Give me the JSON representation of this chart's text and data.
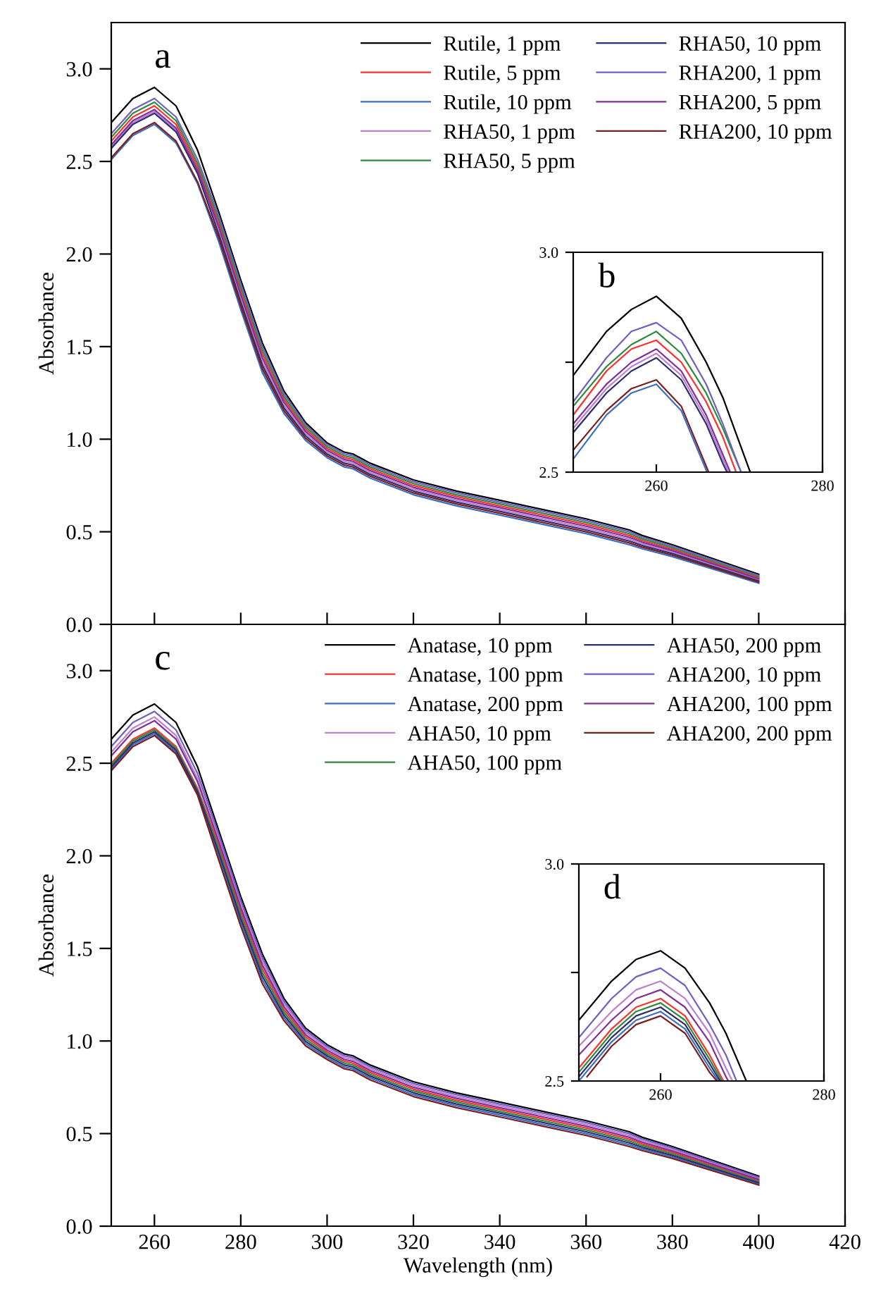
{
  "chart_data": [
    {
      "type": "line",
      "ylabel": "Absorbance",
      "annotations": [
        "a"
      ],
      "legend": "top right",
      "tick_labels": "y",
      "xlim": [
        250,
        420
      ],
      "xticks": [
        260,
        280,
        300,
        320,
        340,
        360,
        380,
        400,
        420
      ],
      "ylim": [
        0,
        3.25
      ],
      "yticks": [
        {
          "value": 0,
          "label": "0.0"
        },
        {
          "value": 0.5,
          "label": "0.5"
        },
        {
          "value": 1,
          "label": "1.0"
        },
        {
          "value": 1.5,
          "label": "1.5"
        },
        {
          "value": 2,
          "label": "2.0"
        },
        {
          "value": 2.5,
          "label": "2.5"
        },
        {
          "value": 3,
          "label": "3.0"
        }
      ],
      "x": [
        250,
        255,
        260,
        265,
        270,
        275,
        280,
        285,
        290,
        295,
        300,
        304,
        306,
        310,
        320,
        330,
        340,
        350,
        360,
        370,
        373,
        380,
        390,
        400
      ],
      "series": [
        {
          "name": "Rutile, 1 ppm",
          "color": "#000000",
          "values": [
            2.71,
            2.84,
            2.9,
            2.8,
            2.56,
            2.22,
            1.86,
            1.52,
            1.26,
            1.09,
            0.98,
            0.93,
            0.92,
            0.87,
            0.78,
            0.72,
            0.67,
            0.62,
            0.57,
            0.51,
            0.48,
            0.43,
            0.35,
            0.27
          ]
        },
        {
          "name": "Rutile, 5 ppm",
          "color": "#ff3030",
          "values": [
            2.61,
            2.74,
            2.8,
            2.7,
            2.47,
            2.16,
            1.8,
            1.46,
            1.215,
            1.054,
            0.95,
            0.9,
            0.89,
            0.84,
            0.75,
            0.69,
            0.64,
            0.59,
            0.54,
            0.48,
            0.453,
            0.406,
            0.329,
            0.252
          ]
        },
        {
          "name": "Rutile, 10 ppm",
          "color": "#3a6fc4",
          "values": [
            2.51,
            2.64,
            2.7,
            2.6,
            2.38,
            2.06,
            1.7,
            1.36,
            1.14,
            0.994,
            0.9,
            0.85,
            0.84,
            0.79,
            0.7,
            0.64,
            0.59,
            0.54,
            0.49,
            0.43,
            0.408,
            0.366,
            0.294,
            0.222
          ]
        },
        {
          "name": "RHA50, 1 ppm",
          "color": "#c080d0",
          "values": [
            2.58,
            2.71,
            2.77,
            2.67,
            2.443,
            2.12,
            1.76,
            1.42,
            1.185,
            1.03,
            0.93,
            0.88,
            0.87,
            0.82,
            0.73,
            0.67,
            0.62,
            0.57,
            0.52,
            0.46,
            0.435,
            0.39,
            0.315,
            0.24
          ]
        },
        {
          "name": "RHA50, 5 ppm",
          "color": "#2e8b3e",
          "values": [
            2.63,
            2.76,
            2.82,
            2.72,
            2.488,
            2.18,
            1.82,
            1.48,
            1.23,
            1.066,
            0.96,
            0.91,
            0.9,
            0.85,
            0.76,
            0.7,
            0.65,
            0.6,
            0.55,
            0.49,
            0.462,
            0.414,
            0.336,
            0.258
          ]
        },
        {
          "name": "RHA50, 10 ppm",
          "color": "#2e2e6e",
          "values": [
            2.57,
            2.7,
            2.76,
            2.66,
            2.434,
            2.1,
            1.74,
            1.4,
            1.17,
            1.018,
            0.92,
            0.87,
            0.86,
            0.81,
            0.72,
            0.66,
            0.61,
            0.56,
            0.51,
            0.45,
            0.426,
            0.382,
            0.308,
            0.234
          ]
        },
        {
          "name": "RHA200, 1 ppm",
          "color": "#7060c0",
          "values": [
            2.65,
            2.78,
            2.84,
            2.74,
            2.51,
            2.2,
            1.84,
            1.5,
            1.245,
            1.078,
            0.97,
            0.92,
            0.91,
            0.86,
            0.77,
            0.71,
            0.66,
            0.61,
            0.56,
            0.5,
            0.471,
            0.422,
            0.343,
            0.264
          ]
        },
        {
          "name": "RHA200, 5 ppm",
          "color": "#80309a",
          "values": [
            2.59,
            2.72,
            2.78,
            2.68,
            2.452,
            2.14,
            1.78,
            1.44,
            1.2,
            1.042,
            0.94,
            0.89,
            0.88,
            0.83,
            0.74,
            0.68,
            0.63,
            0.58,
            0.53,
            0.47,
            0.444,
            0.398,
            0.322,
            0.246
          ]
        },
        {
          "name": "RHA200, 10 ppm",
          "color": "#7a1f1f",
          "values": [
            2.52,
            2.65,
            2.71,
            2.61,
            2.389,
            2.08,
            1.72,
            1.38,
            1.155,
            1.006,
            0.91,
            0.86,
            0.85,
            0.8,
            0.71,
            0.65,
            0.6,
            0.55,
            0.5,
            0.44,
            0.417,
            0.374,
            0.301,
            0.228
          ]
        }
      ]
    },
    {
      "type": "line",
      "annotations": [
        "b"
      ],
      "xlim": [
        250,
        280
      ],
      "xticks": [
        260,
        280
      ],
      "ylim": [
        2.5,
        3.0
      ],
      "yticks": [
        {
          "value": 2.5,
          "label": "2.5"
        },
        {
          "value": 2.75,
          "label": null
        },
        {
          "value": 3.0,
          "label": "3.0"
        }
      ],
      "series": [
        {
          "color": "#000000",
          "x": [
            250,
            254,
            257,
            260,
            263,
            266,
            268,
            271.3
          ],
          "values": [
            2.72,
            2.82,
            2.87,
            2.9,
            2.85,
            2.75,
            2.67,
            2.5
          ]
        },
        {
          "color": "#ff3030",
          "x": [
            250,
            254,
            257,
            260,
            263,
            266,
            268,
            269.6
          ],
          "values": [
            2.63,
            2.73,
            2.78,
            2.8,
            2.75,
            2.66,
            2.58,
            2.5
          ]
        },
        {
          "color": "#3a6fc4",
          "x": [
            250,
            254,
            257,
            260,
            263,
            266.1
          ],
          "values": [
            2.53,
            2.63,
            2.68,
            2.7,
            2.64,
            2.5
          ]
        },
        {
          "color": "#c080d0",
          "x": [
            250,
            254,
            257,
            260,
            263,
            266,
            268,
            268.7
          ],
          "values": [
            2.6,
            2.69,
            2.74,
            2.77,
            2.72,
            2.62,
            2.53,
            2.5
          ]
        },
        {
          "color": "#2e8b3e",
          "x": [
            250,
            254,
            257,
            260,
            263,
            266,
            268,
            270.2
          ],
          "values": [
            2.65,
            2.74,
            2.79,
            2.82,
            2.77,
            2.68,
            2.6,
            2.5
          ]
        },
        {
          "color": "#2e2e6e",
          "x": [
            250,
            254,
            257,
            260,
            263,
            266,
            268,
            268.5
          ],
          "values": [
            2.59,
            2.68,
            2.73,
            2.76,
            2.71,
            2.61,
            2.52,
            2.5
          ]
        },
        {
          "color": "#7060c0",
          "x": [
            250,
            254,
            257,
            260,
            263,
            266,
            268,
            270.2
          ],
          "values": [
            2.66,
            2.76,
            2.82,
            2.84,
            2.8,
            2.7,
            2.61,
            2.5
          ]
        },
        {
          "color": "#80309a",
          "x": [
            250,
            254,
            257,
            260,
            263,
            266,
            268,
            268.9
          ],
          "values": [
            2.61,
            2.7,
            2.75,
            2.78,
            2.73,
            2.63,
            2.54,
            2.5
          ]
        },
        {
          "color": "#7a1f1f",
          "x": [
            250,
            254,
            257,
            260,
            263,
            266.3
          ],
          "values": [
            2.55,
            2.64,
            2.69,
            2.71,
            2.65,
            2.5
          ]
        }
      ]
    },
    {
      "type": "line",
      "xlabel": "Wavelength (nm)",
      "ylabel": "Absorbance",
      "annotations": [
        "c"
      ],
      "legend": "top right",
      "xlim": [
        250,
        420
      ],
      "xticks": [
        260,
        280,
        300,
        320,
        340,
        360,
        380,
        400,
        420
      ],
      "ylim": [
        0,
        3.25
      ],
      "yticks": [
        {
          "value": 0,
          "label": "0.0"
        },
        {
          "value": 0.5,
          "label": "0.5"
        },
        {
          "value": 1,
          "label": "1.0"
        },
        {
          "value": 1.5,
          "label": "1.5"
        },
        {
          "value": 2,
          "label": "2.0"
        },
        {
          "value": 2.5,
          "label": "2.5"
        },
        {
          "value": 3,
          "label": "3.0"
        }
      ],
      "x": [
        250,
        255,
        260,
        265,
        270,
        275,
        280,
        285,
        290,
        295,
        300,
        304,
        306,
        310,
        320,
        330,
        340,
        350,
        360,
        370,
        373,
        380,
        390,
        400
      ],
      "series": [
        {
          "name": "Anatase, 10 ppm",
          "color": "#000000",
          "values": [
            2.63,
            2.76,
            2.82,
            2.72,
            2.48,
            2.13,
            1.78,
            1.47,
            1.23,
            1.07,
            0.98,
            0.93,
            0.92,
            0.87,
            0.78,
            0.72,
            0.67,
            0.62,
            0.57,
            0.51,
            0.48,
            0.43,
            0.35,
            0.27
          ]
        },
        {
          "name": "Anatase, 100 ppm",
          "color": "#ff3030",
          "values": [
            2.5,
            2.63,
            2.69,
            2.59,
            2.363,
            2.05,
            1.7,
            1.39,
            1.17,
            1.022,
            0.94,
            0.89,
            0.88,
            0.83,
            0.74,
            0.68,
            0.63,
            0.58,
            0.53,
            0.47,
            0.444,
            0.398,
            0.322,
            0.246
          ]
        },
        {
          "name": "Anatase, 200 ppm",
          "color": "#3a6fc4",
          "values": [
            2.47,
            2.6,
            2.66,
            2.56,
            2.336,
            1.99,
            1.64,
            1.33,
            1.125,
            0.986,
            0.91,
            0.86,
            0.85,
            0.8,
            0.71,
            0.65,
            0.6,
            0.55,
            0.5,
            0.44,
            0.417,
            0.374,
            0.301,
            0.228
          ]
        },
        {
          "name": "AHA50, 10 ppm",
          "color": "#c080d0",
          "values": [
            2.56,
            2.69,
            2.75,
            2.65,
            2.417,
            2.09,
            1.74,
            1.43,
            1.2,
            1.046,
            0.96,
            0.91,
            0.9,
            0.85,
            0.76,
            0.7,
            0.65,
            0.6,
            0.55,
            0.49,
            0.462,
            0.414,
            0.336,
            0.258
          ]
        },
        {
          "name": "AHA50, 100 ppm",
          "color": "#2e8b3e",
          "values": [
            2.49,
            2.62,
            2.68,
            2.58,
            2.354,
            2.03,
            1.68,
            1.37,
            1.155,
            1.01,
            0.93,
            0.88,
            0.87,
            0.82,
            0.73,
            0.67,
            0.62,
            0.57,
            0.52,
            0.46,
            0.435,
            0.39,
            0.315,
            0.24
          ]
        },
        {
          "name": "AHA50, 200 ppm",
          "color": "#2e2e6e",
          "values": [
            2.48,
            2.61,
            2.67,
            2.57,
            2.345,
            2.01,
            1.66,
            1.35,
            1.14,
            0.998,
            0.92,
            0.87,
            0.86,
            0.81,
            0.72,
            0.66,
            0.61,
            0.56,
            0.51,
            0.45,
            0.426,
            0.382,
            0.308,
            0.234
          ]
        },
        {
          "name": "AHA200, 10 ppm",
          "color": "#7060c0",
          "values": [
            2.59,
            2.72,
            2.78,
            2.68,
            2.444,
            2.11,
            1.76,
            1.45,
            1.215,
            1.058,
            0.97,
            0.92,
            0.91,
            0.86,
            0.77,
            0.71,
            0.66,
            0.61,
            0.56,
            0.5,
            0.471,
            0.422,
            0.343,
            0.264
          ]
        },
        {
          "name": "AHA200, 100 ppm",
          "color": "#80309a",
          "values": [
            2.54,
            2.67,
            2.73,
            2.63,
            2.399,
            2.07,
            1.72,
            1.41,
            1.185,
            1.034,
            0.95,
            0.9,
            0.89,
            0.84,
            0.75,
            0.69,
            0.64,
            0.59,
            0.54,
            0.48,
            0.453,
            0.406,
            0.329,
            0.252
          ]
        },
        {
          "name": "AHA200, 200 ppm",
          "color": "#7a1f1f",
          "values": [
            2.46,
            2.59,
            2.65,
            2.55,
            2.327,
            1.97,
            1.62,
            1.31,
            1.11,
            0.974,
            0.9,
            0.85,
            0.84,
            0.79,
            0.7,
            0.64,
            0.59,
            0.54,
            0.49,
            0.43,
            0.408,
            0.366,
            0.294,
            0.222
          ]
        }
      ]
    },
    {
      "type": "line",
      "annotations": [
        "d"
      ],
      "xlim": [
        250,
        280
      ],
      "xticks": [
        260,
        280
      ],
      "ylim": [
        2.5,
        3.0
      ],
      "yticks": [
        {
          "value": 2.5,
          "label": "2.5"
        },
        {
          "value": 2.75,
          "label": null
        },
        {
          "value": 3.0,
          "label": "3.0"
        }
      ],
      "series": [
        {
          "color": "#000000",
          "x": [
            250,
            254,
            257,
            260,
            263,
            266,
            268,
            270.5
          ],
          "values": [
            2.64,
            2.73,
            2.78,
            2.8,
            2.76,
            2.68,
            2.61,
            2.5
          ]
        },
        {
          "color": "#ff3030",
          "x": [
            250,
            254,
            257,
            260,
            263,
            266,
            267.7
          ],
          "values": [
            2.53,
            2.62,
            2.67,
            2.69,
            2.65,
            2.56,
            2.5
          ]
        },
        {
          "color": "#3a6fc4",
          "x": [
            250,
            254,
            257,
            260,
            263,
            266,
            267.1
          ],
          "values": [
            2.5,
            2.59,
            2.64,
            2.66,
            2.62,
            2.53,
            2.5
          ]
        },
        {
          "color": "#c080d0",
          "x": [
            250,
            254,
            257,
            260,
            263,
            266,
            268,
            268.8
          ],
          "values": [
            2.58,
            2.66,
            2.71,
            2.73,
            2.69,
            2.61,
            2.53,
            2.5
          ]
        },
        {
          "color": "#2e8b3e",
          "x": [
            250,
            254,
            257,
            260,
            263,
            266,
            267.5
          ],
          "values": [
            2.52,
            2.61,
            2.66,
            2.68,
            2.64,
            2.55,
            2.5
          ]
        },
        {
          "color": "#2e2e6e",
          "x": [
            250,
            254,
            257,
            260,
            263,
            266,
            267.3
          ],
          "values": [
            2.51,
            2.6,
            2.65,
            2.67,
            2.63,
            2.54,
            2.5
          ]
        },
        {
          "color": "#7060c0",
          "x": [
            250,
            254,
            257,
            260,
            263,
            266,
            268,
            269.3
          ],
          "values": [
            2.6,
            2.69,
            2.74,
            2.76,
            2.72,
            2.63,
            2.56,
            2.5
          ]
        },
        {
          "color": "#80309a",
          "x": [
            250,
            254,
            257,
            260,
            263,
            266,
            268,
            268.3
          ],
          "values": [
            2.56,
            2.64,
            2.69,
            2.71,
            2.67,
            2.59,
            2.51,
            2.5
          ]
        },
        {
          "color": "#7a1f1f",
          "x": [
            251,
            254,
            257,
            260,
            263,
            266,
            266.9
          ],
          "values": [
            2.51,
            2.58,
            2.63,
            2.65,
            2.61,
            2.52,
            2.5
          ]
        }
      ]
    }
  ]
}
